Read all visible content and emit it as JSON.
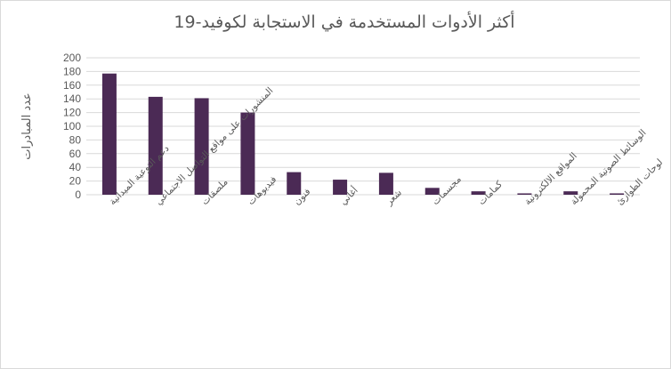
{
  "chart_data": {
    "type": "bar",
    "title": "أكثر الأدوات المستخدمة في الاستجابة لكوفيد-19",
    "xlabel": "",
    "ylabel": "عدد المبادرات",
    "ylim": [
      0,
      200
    ],
    "yticks": [
      0,
      20,
      40,
      60,
      80,
      100,
      120,
      140,
      160,
      180,
      200
    ],
    "grid": true,
    "legend": "none",
    "bar_color": "#4b2a55",
    "categories": [
      "دعم التوعية الميدانية",
      "المنشورات على مواقع التواصل الاجتماعي",
      "ملصقات",
      "فيديوهات",
      "فنون",
      "أغاني",
      "شعر",
      "مجسمات",
      "كمامات",
      "المواقع الالكترونية",
      "الوسائط الصوتية المحمولة",
      "لوحات الطوارئ"
    ],
    "values": [
      177,
      143,
      141,
      120,
      33,
      22,
      32,
      10,
      5,
      2,
      5,
      2
    ]
  }
}
